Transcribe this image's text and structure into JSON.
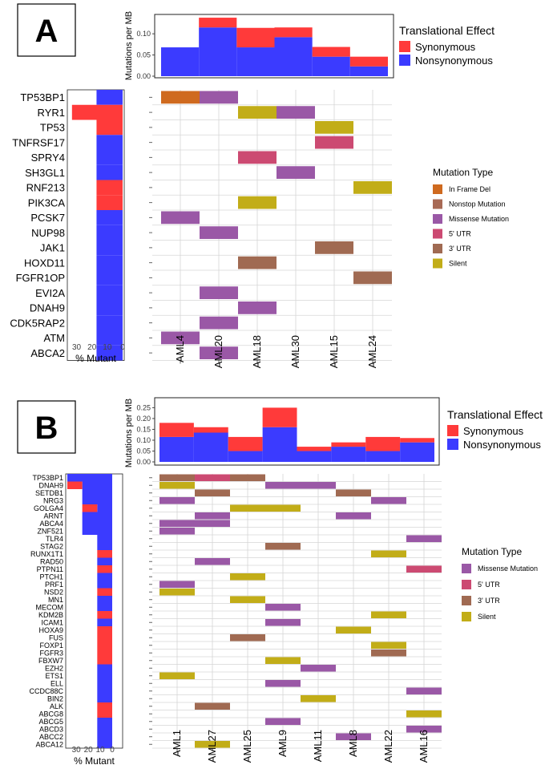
{
  "colors": {
    "synonymous": "#ff3a3a",
    "nonsynonymous": "#3b3bff",
    "in_frame_del": "#cf6a1f",
    "nonstop": "#a86a55",
    "missense": "#9a58a6",
    "utr5": "#cc4a72",
    "utr3": "#a06a52",
    "silent": "#c2ad18",
    "grid": "#d6d6d6",
    "cell_bg": "#ffffff"
  },
  "chart_data": [
    {
      "panel": "A",
      "type": "heatmap",
      "panel_label": "A",
      "samples": [
        "AML4",
        "AML20",
        "AML18",
        "AML30",
        "AML15",
        "AML24"
      ],
      "top_bar": {
        "type": "bar",
        "ylabel": "Mutations per MB",
        "ylim": [
          0,
          0.14
        ],
        "ticks": [
          "0.00",
          "0.05",
          "0.10"
        ],
        "tick_values": [
          0,
          0.05,
          0.1
        ],
        "nonsynonymous": [
          0.068,
          0.115,
          0.068,
          0.092,
          0.046,
          0.023
        ],
        "synonymous": [
          0.0,
          0.023,
          0.046,
          0.023,
          0.023,
          0.023
        ]
      },
      "genes": [
        "TP53BP1",
        "RYR1",
        "TP53",
        "TNFRSF17",
        "SPRY4",
        "SH3GL1",
        "RNF213",
        "PIK3CA",
        "PCSK7",
        "NUP98",
        "JAK1",
        "HOXD11",
        "FGFR1OP",
        "EVI2A",
        "DNAH9",
        "CDK5RAP2",
        "ATM",
        "ABCA2"
      ],
      "percent_mutant": {
        "xlabel": "% Mutant",
        "ticks": [
          "30",
          "20",
          "10",
          "0"
        ],
        "tick_values": [
          30,
          20,
          10,
          0
        ],
        "max": 35,
        "nonsynonymous": [
          17,
          0,
          0,
          17,
          17,
          17,
          0,
          0,
          17,
          17,
          17,
          17,
          17,
          17,
          17,
          17,
          17,
          17
        ],
        "synonymous": [
          0,
          33,
          17,
          0,
          0,
          0,
          17,
          17,
          0,
          0,
          0,
          0,
          0,
          0,
          0,
          0,
          0,
          0
        ]
      },
      "cells": [
        {
          "gene": "TP53BP1",
          "sample": "AML4",
          "type": "In Frame Del"
        },
        {
          "gene": "TP53BP1",
          "sample": "AML20",
          "type": "Missense Mutation"
        },
        {
          "gene": "RYR1",
          "sample": "AML18",
          "type": "Silent"
        },
        {
          "gene": "RYR1",
          "sample": "AML30",
          "type": "Missense Mutation"
        },
        {
          "gene": "TP53",
          "sample": "AML15",
          "type": "Silent"
        },
        {
          "gene": "TNFRSF17",
          "sample": "AML15",
          "type": "5' UTR"
        },
        {
          "gene": "SPRY4",
          "sample": "AML18",
          "type": "5' UTR"
        },
        {
          "gene": "SH3GL1",
          "sample": "AML30",
          "type": "Missense Mutation"
        },
        {
          "gene": "RNF213",
          "sample": "AML24",
          "type": "Silent"
        },
        {
          "gene": "PIK3CA",
          "sample": "AML18",
          "type": "Silent"
        },
        {
          "gene": "PCSK7",
          "sample": "AML4",
          "type": "Missense Mutation"
        },
        {
          "gene": "NUP98",
          "sample": "AML20",
          "type": "Missense Mutation"
        },
        {
          "gene": "JAK1",
          "sample": "AML15",
          "type": "3' UTR"
        },
        {
          "gene": "HOXD11",
          "sample": "AML18",
          "type": "3' UTR"
        },
        {
          "gene": "FGFR1OP",
          "sample": "AML24",
          "type": "3' UTR"
        },
        {
          "gene": "EVI2A",
          "sample": "AML20",
          "type": "Missense Mutation"
        },
        {
          "gene": "DNAH9",
          "sample": "AML18",
          "type": "Missense Mutation"
        },
        {
          "gene": "CDK5RAP2",
          "sample": "AML20",
          "type": "Missense Mutation"
        },
        {
          "gene": "ATM",
          "sample": "AML4",
          "type": "Missense Mutation"
        },
        {
          "gene": "ABCA2",
          "sample": "AML20",
          "type": "Missense Mutation"
        }
      ],
      "legend_effect": {
        "title": "Translational Effect",
        "items": [
          "Synonymous",
          "Nonsynonymous"
        ]
      },
      "legend_type": {
        "title": "Mutation Type",
        "items": [
          "In Frame Del",
          "Nonstop Mutation",
          "Missense Mutation",
          "5' UTR",
          "3' UTR",
          "Silent"
        ]
      }
    },
    {
      "panel": "B",
      "type": "heatmap",
      "panel_label": "B",
      "samples": [
        "AML1",
        "AML27",
        "AML25",
        "AML9",
        "AML11",
        "AML8",
        "AML22",
        "AML16"
      ],
      "top_bar": {
        "type": "bar",
        "ylabel": "Mutations per MB",
        "ylim": [
          0,
          0.27
        ],
        "ticks": [
          "0.00",
          "0.05",
          "0.10",
          "0.15",
          "0.20",
          "0.25"
        ],
        "tick_values": [
          0,
          0.05,
          0.1,
          0.15,
          0.2,
          0.25
        ],
        "nonsynonymous": [
          0.115,
          0.135,
          0.05,
          0.16,
          0.05,
          0.07,
          0.05,
          0.09
        ],
        "synonymous": [
          0.065,
          0.025,
          0.065,
          0.09,
          0.02,
          0.02,
          0.065,
          0.02
        ]
      },
      "genes": [
        "TP53BP1",
        "DNAH9",
        "SETDB1",
        "NRG3",
        "GOLGA4",
        "ARNT",
        "ABCA4",
        "ZNF521",
        "TLR4",
        "STAG2",
        "RUNX1T1",
        "RAD50",
        "PTPN11",
        "PTCH1",
        "PRF1",
        "NSD2",
        "MN1",
        "MECOM",
        "KDM2B",
        "ICAM1",
        "HOXA9",
        "FUS",
        "FOXP1",
        "FGFR3",
        "FBXW7",
        "EZH2",
        "ETS1",
        "ELL",
        "CCDC88C",
        "BIN2",
        "ALK",
        "ABCG8",
        "ABCG5",
        "ABCD3",
        "ABCC2",
        "ABCA12"
      ],
      "percent_mutant": {
        "xlabel": "% Mutant",
        "ticks": [
          "30",
          "20",
          "10",
          "0"
        ],
        "tick_values": [
          30,
          20,
          10,
          0
        ],
        "max": 37.5,
        "nonsynonymous": [
          37.5,
          25,
          25,
          25,
          12.5,
          25,
          25,
          25,
          12.5,
          12.5,
          0,
          12.5,
          0,
          12.5,
          12.5,
          0,
          12.5,
          12.5,
          0,
          12.5,
          0,
          0,
          0,
          0,
          0,
          12.5,
          12.5,
          12.5,
          12.5,
          12.5,
          0,
          0,
          12.5,
          12.5,
          12.5,
          12.5
        ],
        "synonymous": [
          0,
          12.5,
          0,
          0,
          12.5,
          0,
          0,
          0,
          0,
          0,
          12.5,
          0,
          12.5,
          0,
          0,
          12.5,
          0,
          0,
          12.5,
          0,
          12.5,
          12.5,
          12.5,
          12.5,
          12.5,
          0,
          0,
          0,
          0,
          0,
          12.5,
          12.5,
          0,
          0,
          0,
          0
        ]
      },
      "cells": [
        {
          "gene": "TP53BP1",
          "sample": "AML1",
          "type": "3' UTR"
        },
        {
          "gene": "TP53BP1",
          "sample": "AML27",
          "type": "5' UTR"
        },
        {
          "gene": "TP53BP1",
          "sample": "AML25",
          "type": "3' UTR"
        },
        {
          "gene": "DNAH9",
          "sample": "AML1",
          "type": "Silent"
        },
        {
          "gene": "DNAH9",
          "sample": "AML9",
          "type": "Missense Mutation"
        },
        {
          "gene": "DNAH9",
          "sample": "AML11",
          "type": "Missense Mutation"
        },
        {
          "gene": "SETDB1",
          "sample": "AML27",
          "type": "3' UTR"
        },
        {
          "gene": "SETDB1",
          "sample": "AML8",
          "type": "3' UTR"
        },
        {
          "gene": "NRG3",
          "sample": "AML1",
          "type": "Missense Mutation"
        },
        {
          "gene": "NRG3",
          "sample": "AML22",
          "type": "Missense Mutation"
        },
        {
          "gene": "GOLGA4",
          "sample": "AML25",
          "type": "Silent"
        },
        {
          "gene": "GOLGA4",
          "sample": "AML9",
          "type": "Silent"
        },
        {
          "gene": "ARNT",
          "sample": "AML27",
          "type": "Missense Mutation"
        },
        {
          "gene": "ARNT",
          "sample": "AML8",
          "type": "Missense Mutation"
        },
        {
          "gene": "ABCA4",
          "sample": "AML1",
          "type": "Missense Mutation"
        },
        {
          "gene": "ABCA4",
          "sample": "AML27",
          "type": "Missense Mutation"
        },
        {
          "gene": "ZNF521",
          "sample": "AML1",
          "type": "Missense Mutation"
        },
        {
          "gene": "TLR4",
          "sample": "AML16",
          "type": "Missense Mutation"
        },
        {
          "gene": "STAG2",
          "sample": "AML9",
          "type": "3' UTR"
        },
        {
          "gene": "RUNX1T1",
          "sample": "AML22",
          "type": "Silent"
        },
        {
          "gene": "RAD50",
          "sample": "AML27",
          "type": "Missense Mutation"
        },
        {
          "gene": "PTPN11",
          "sample": "AML16",
          "type": "5' UTR"
        },
        {
          "gene": "PTCH1",
          "sample": "AML25",
          "type": "Silent"
        },
        {
          "gene": "PRF1",
          "sample": "AML1",
          "type": "Missense Mutation"
        },
        {
          "gene": "NSD2",
          "sample": "AML1",
          "type": "Silent"
        },
        {
          "gene": "MN1",
          "sample": "AML25",
          "type": "Silent"
        },
        {
          "gene": "MECOM",
          "sample": "AML9",
          "type": "Missense Mutation"
        },
        {
          "gene": "KDM2B",
          "sample": "AML22",
          "type": "Silent"
        },
        {
          "gene": "ICAM1",
          "sample": "AML9",
          "type": "Missense Mutation"
        },
        {
          "gene": "HOXA9",
          "sample": "AML8",
          "type": "Silent"
        },
        {
          "gene": "FUS",
          "sample": "AML25",
          "type": "3' UTR"
        },
        {
          "gene": "FOXP1",
          "sample": "AML22",
          "type": "Silent"
        },
        {
          "gene": "FGFR3",
          "sample": "AML22",
          "type": "3' UTR"
        },
        {
          "gene": "FBXW7",
          "sample": "AML9",
          "type": "Silent"
        },
        {
          "gene": "EZH2",
          "sample": "AML11",
          "type": "Missense Mutation"
        },
        {
          "gene": "ETS1",
          "sample": "AML1",
          "type": "Silent"
        },
        {
          "gene": "ELL",
          "sample": "AML9",
          "type": "Missense Mutation"
        },
        {
          "gene": "CCDC88C",
          "sample": "AML16",
          "type": "Missense Mutation"
        },
        {
          "gene": "BIN2",
          "sample": "AML11",
          "type": "Silent"
        },
        {
          "gene": "ALK",
          "sample": "AML27",
          "type": "3' UTR"
        },
        {
          "gene": "ABCG8",
          "sample": "AML16",
          "type": "Silent"
        },
        {
          "gene": "ABCG5",
          "sample": "AML9",
          "type": "Missense Mutation"
        },
        {
          "gene": "ABCD3",
          "sample": "AML16",
          "type": "Missense Mutation"
        },
        {
          "gene": "ABCC2",
          "sample": "AML8",
          "type": "Missense Mutation"
        },
        {
          "gene": "ABCA12",
          "sample": "AML27",
          "type": "Silent"
        }
      ],
      "legend_effect": {
        "title": "Translational Effect",
        "items": [
          "Synonymous",
          "Nonsynonymous"
        ]
      },
      "legend_type": {
        "title": "Mutation Type",
        "items": [
          "Missense Mutation",
          "5' UTR",
          "3' UTR",
          "Silent"
        ]
      }
    }
  ]
}
